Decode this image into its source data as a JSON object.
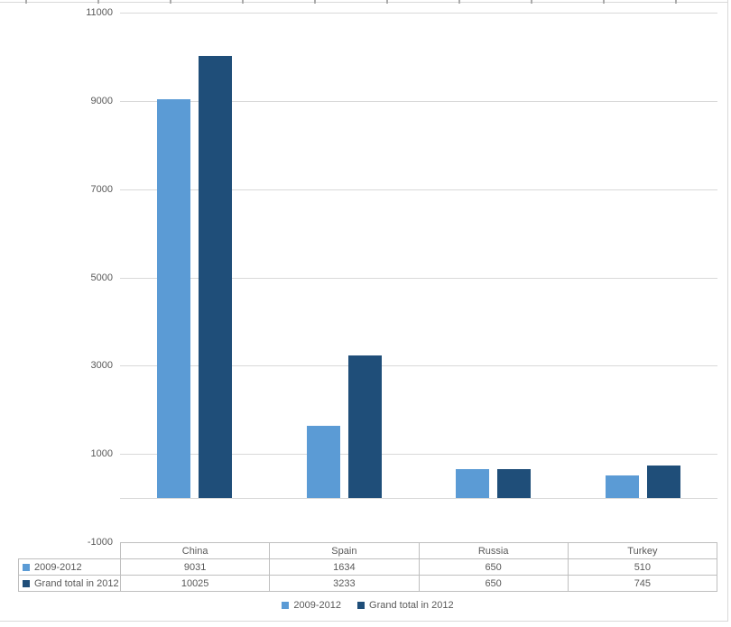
{
  "chart_data": {
    "type": "bar",
    "title": "",
    "categories": [
      "China",
      "Spain",
      "Russia",
      "Turkey"
    ],
    "series": [
      {
        "name": "2009-2012",
        "color": "#5B9BD5",
        "values": [
          9031,
          1634,
          650,
          510
        ]
      },
      {
        "name": "Grand total in 2012",
        "color": "#1F4E79",
        "values": [
          10025,
          3233,
          650,
          745
        ]
      }
    ],
    "xlabel": "",
    "ylabel": "",
    "ylim": [
      -1000,
      11000
    ],
    "ytick_step": 2000,
    "yticks": [
      11000,
      9000,
      7000,
      5000,
      3000,
      1000,
      -1000
    ],
    "grid": true,
    "legend_position": "bottom",
    "has_data_table": true,
    "data_table": {
      "columns": [
        "China",
        "Spain",
        "Russia",
        "Turkey"
      ],
      "row_labels": [
        "2009-2012",
        "Grand total in 2012"
      ],
      "rows": [
        [
          "9031",
          "1634",
          "650",
          "510"
        ],
        [
          "10025",
          "3233",
          "650",
          "745"
        ]
      ]
    }
  },
  "colors": {
    "series_1": "#5B9BD5",
    "series_2": "#1F4E79",
    "gridline": "#D9D9D9",
    "axis_text": "#595959",
    "table_border": "#BFBFBF",
    "table_text": "#595959",
    "sheet_gridline": "#D9D9D9",
    "background": "#FFFFFF"
  }
}
